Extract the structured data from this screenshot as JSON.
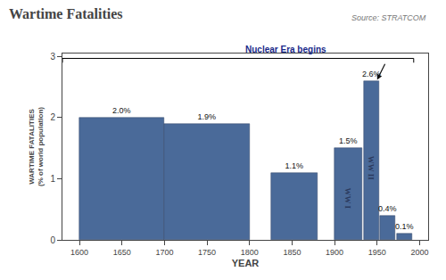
{
  "chart_data": {
    "type": "bar",
    "title": "Wartime Fatalities",
    "source": "Source: STRATCOM",
    "xlabel": "YEAR",
    "ylabel": [
      "WARTIME FATALITIES",
      "(% of world population)"
    ],
    "x": [
      1600,
      1700,
      1825,
      1900,
      1934,
      1953,
      1973
    ],
    "widths": [
      100,
      100,
      55,
      32,
      18,
      18,
      18
    ],
    "values": [
      2.0,
      1.9,
      1.1,
      1.5,
      2.6,
      0.4,
      0.1
    ],
    "value_labels": [
      "2.0%",
      "1.9%",
      "1.1%",
      "1.5%",
      "2.6%",
      "0.4%",
      "0.1%"
    ],
    "bar_texts": [
      null,
      null,
      null,
      "WW I",
      "WW II",
      null,
      null
    ],
    "data_labels": true,
    "color": "#4a6a99",
    "xlim": [
      1580,
      2010
    ],
    "xticks": [
      1600,
      1650,
      1700,
      1750,
      1800,
      1850,
      1900,
      1950,
      2000
    ],
    "ylim": [
      0,
      3.05
    ],
    "yticks": [
      0,
      1,
      2,
      3
    ],
    "grid": false,
    "annotation": {
      "text": "Nuclear Era begins",
      "x": 1843,
      "y": 3.01
    },
    "bracket": {
      "x": [
        1580,
        1993
      ],
      "y": 2.97,
      "y_end": 2.9
    },
    "arrow": {
      "from": [
        1960,
        2.9
      ],
      "to": [
        1950,
        2.62
      ]
    }
  }
}
